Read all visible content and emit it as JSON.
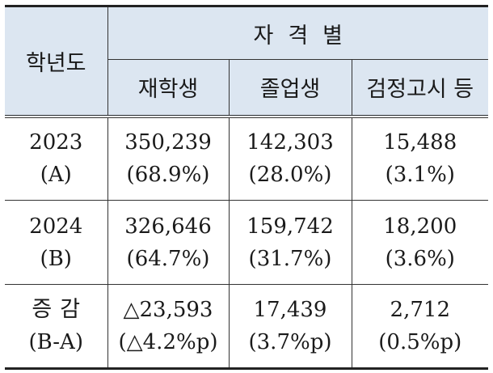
{
  "header": {
    "year_label": "학년도",
    "group_label": "자격별",
    "columns": [
      "재학생",
      "졸업생",
      "검정고시 등"
    ]
  },
  "rows": [
    {
      "year": "2023",
      "code": "(A)",
      "values": [
        {
          "count": "350,239",
          "pct": "(68.9%)"
        },
        {
          "count": "142,303",
          "pct": "(28.0%)"
        },
        {
          "count": "15,488",
          "pct": "(3.1%)"
        }
      ]
    },
    {
      "year": "2024",
      "code": "(B)",
      "values": [
        {
          "count": "326,646",
          "pct": "(64.7%)"
        },
        {
          "count": "159,742",
          "pct": "(31.7%)"
        },
        {
          "count": "18,200",
          "pct": "(3.6%)"
        }
      ]
    }
  ],
  "change": {
    "label": "증감",
    "formula": "(B-A)",
    "values": [
      {
        "count": "△23,593",
        "pct": "(△4.2%p)"
      },
      {
        "count": "17,439",
        "pct": "(3.7%p)"
      },
      {
        "count": "2,712",
        "pct": "(0.5%p)"
      }
    ]
  },
  "colors": {
    "header_bg": "#dce6f1",
    "border": "#333333"
  }
}
